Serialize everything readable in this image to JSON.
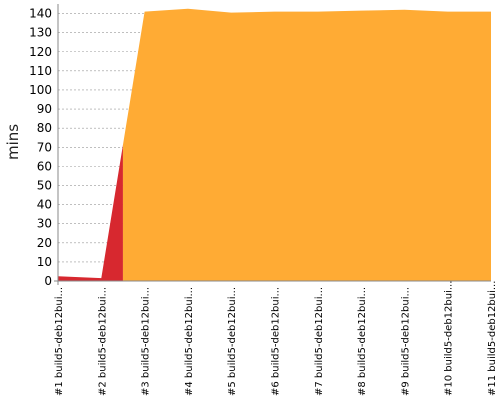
{
  "chart_data": {
    "type": "area",
    "ylabel": "mins",
    "xlabel": "",
    "title": "",
    "ylim": [
      0,
      145
    ],
    "y_ticks": [
      0,
      10,
      20,
      30,
      40,
      50,
      60,
      70,
      80,
      90,
      100,
      110,
      120,
      130,
      140
    ],
    "categories": [
      "#1 build5-deb12bui...",
      "#2 build5-deb12bui...",
      "#3 build5-deb12bui...",
      "#4 build5-deb12bui...",
      "#5 build5-deb12bui...",
      "#6 build5-deb12bui...",
      "#7 build5-deb12bui...",
      "#8 build5-deb12bui...",
      "#9 build5-deb12bui...",
      "#10 build5-deb12bui...",
      "#11 build5-deb12bui..."
    ],
    "series": [
      {
        "values": [
          2.5,
          1.5,
          null,
          null,
          null,
          null,
          null,
          null,
          null,
          null,
          null
        ],
        "color": "#d7282f",
        "status": "failed"
      },
      {
        "values": [
          null,
          null,
          141,
          142.5,
          140.5,
          141,
          141,
          141.5,
          142,
          141,
          141
        ],
        "color": "#ffab34",
        "status": "success"
      }
    ],
    "grid": true,
    "legend": "none"
  }
}
